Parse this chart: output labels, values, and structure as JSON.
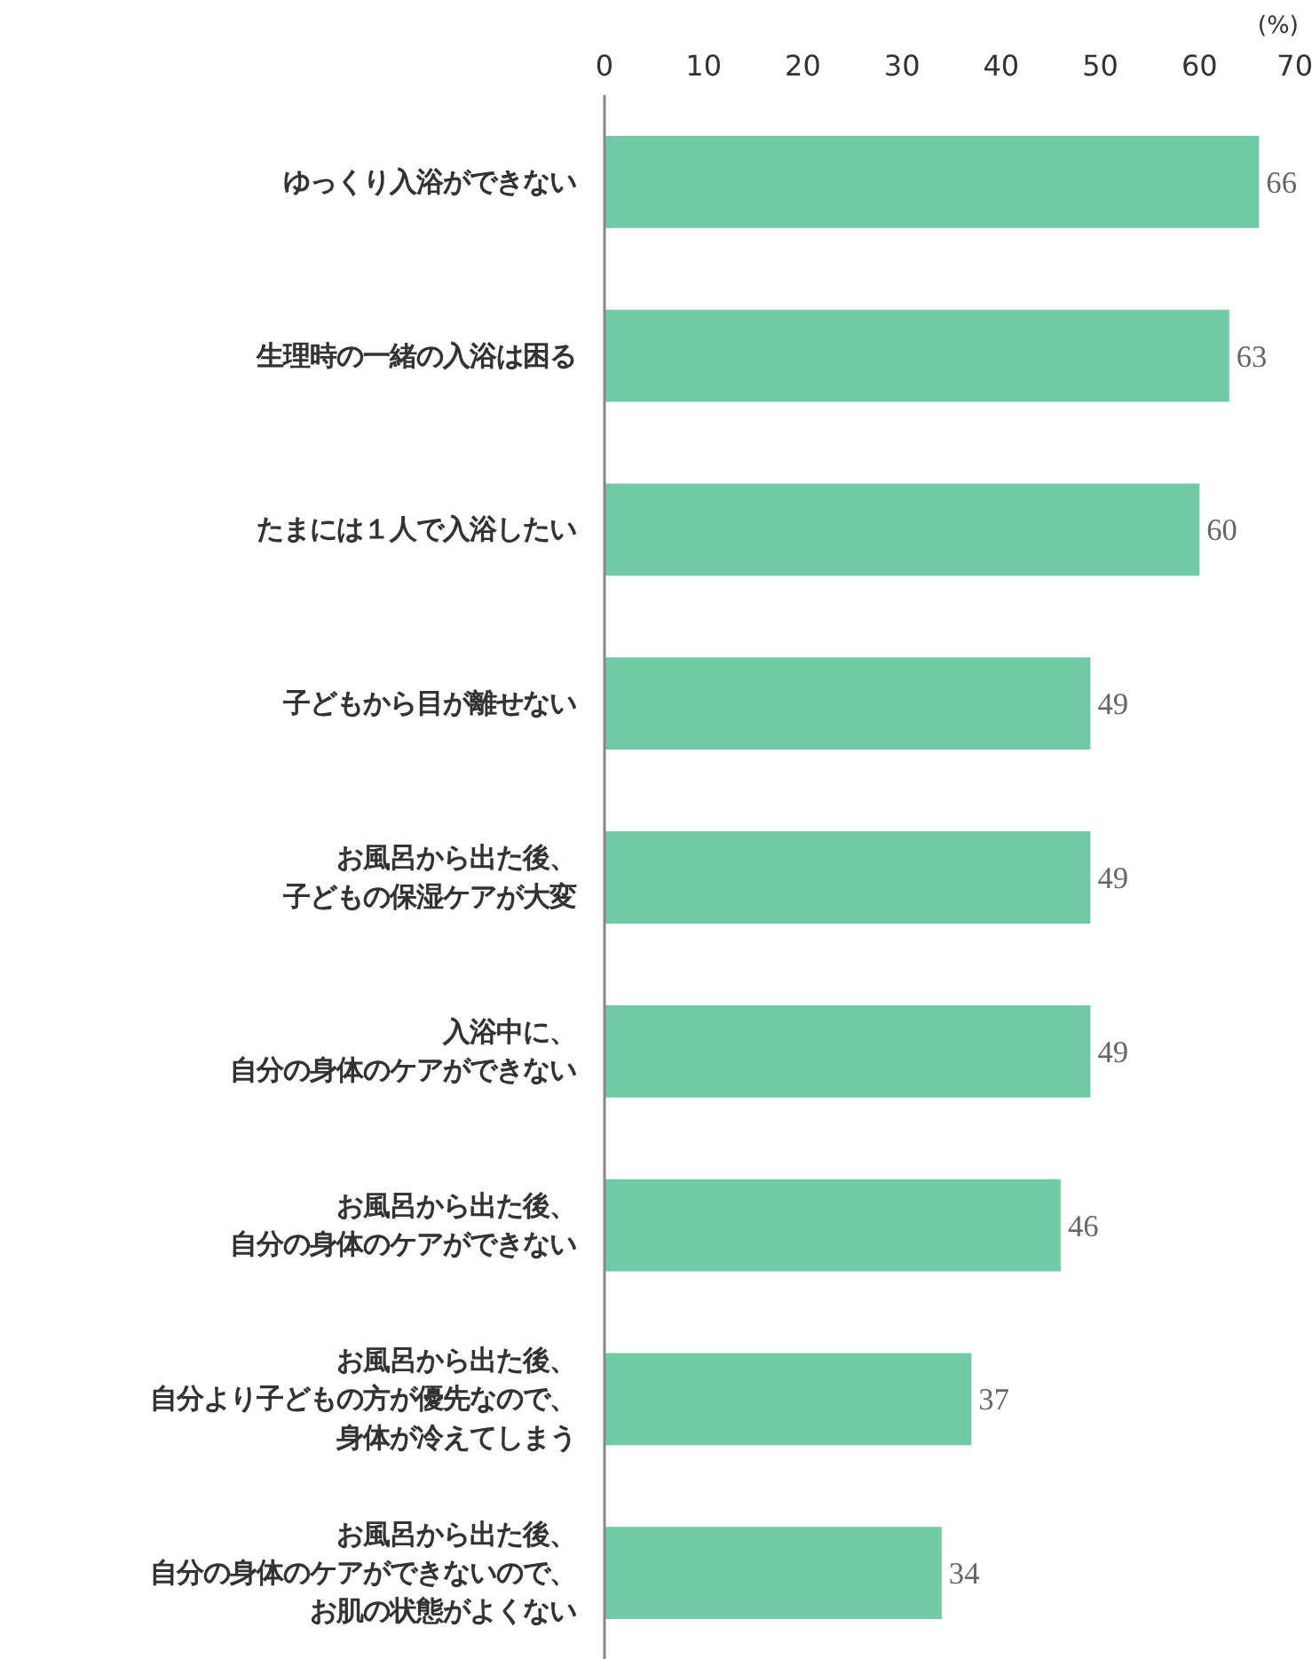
{
  "chart_data": {
    "type": "bar",
    "orientation": "horizontal",
    "xlabel": "(%)",
    "categories": [
      "ゆっくり入浴ができない",
      "生理時の一緒の入浴は困る",
      "たまには１人で入浴したい",
      "子どもから目が離せない",
      "お風呂から出た後、子どもの保湿ケアが大変",
      "入浴中に、自分の身体のケアができない",
      "お風呂から出た後、自分の身体のケアができない",
      "お風呂から出た後、自分より子どもの方が優先なので、身体が冷えてしまう",
      "お風呂から出た後、自分の身体のケアができないので、お肌の状態がよくない"
    ],
    "values": [
      66,
      63,
      60,
      49,
      49,
      49,
      46,
      37,
      34
    ],
    "color": "#72c9a5",
    "xlim": [
      0,
      70
    ],
    "xticks": [
      0,
      10,
      20,
      30,
      40,
      50,
      60,
      70
    ],
    "grid": false,
    "data_labels": true
  }
}
